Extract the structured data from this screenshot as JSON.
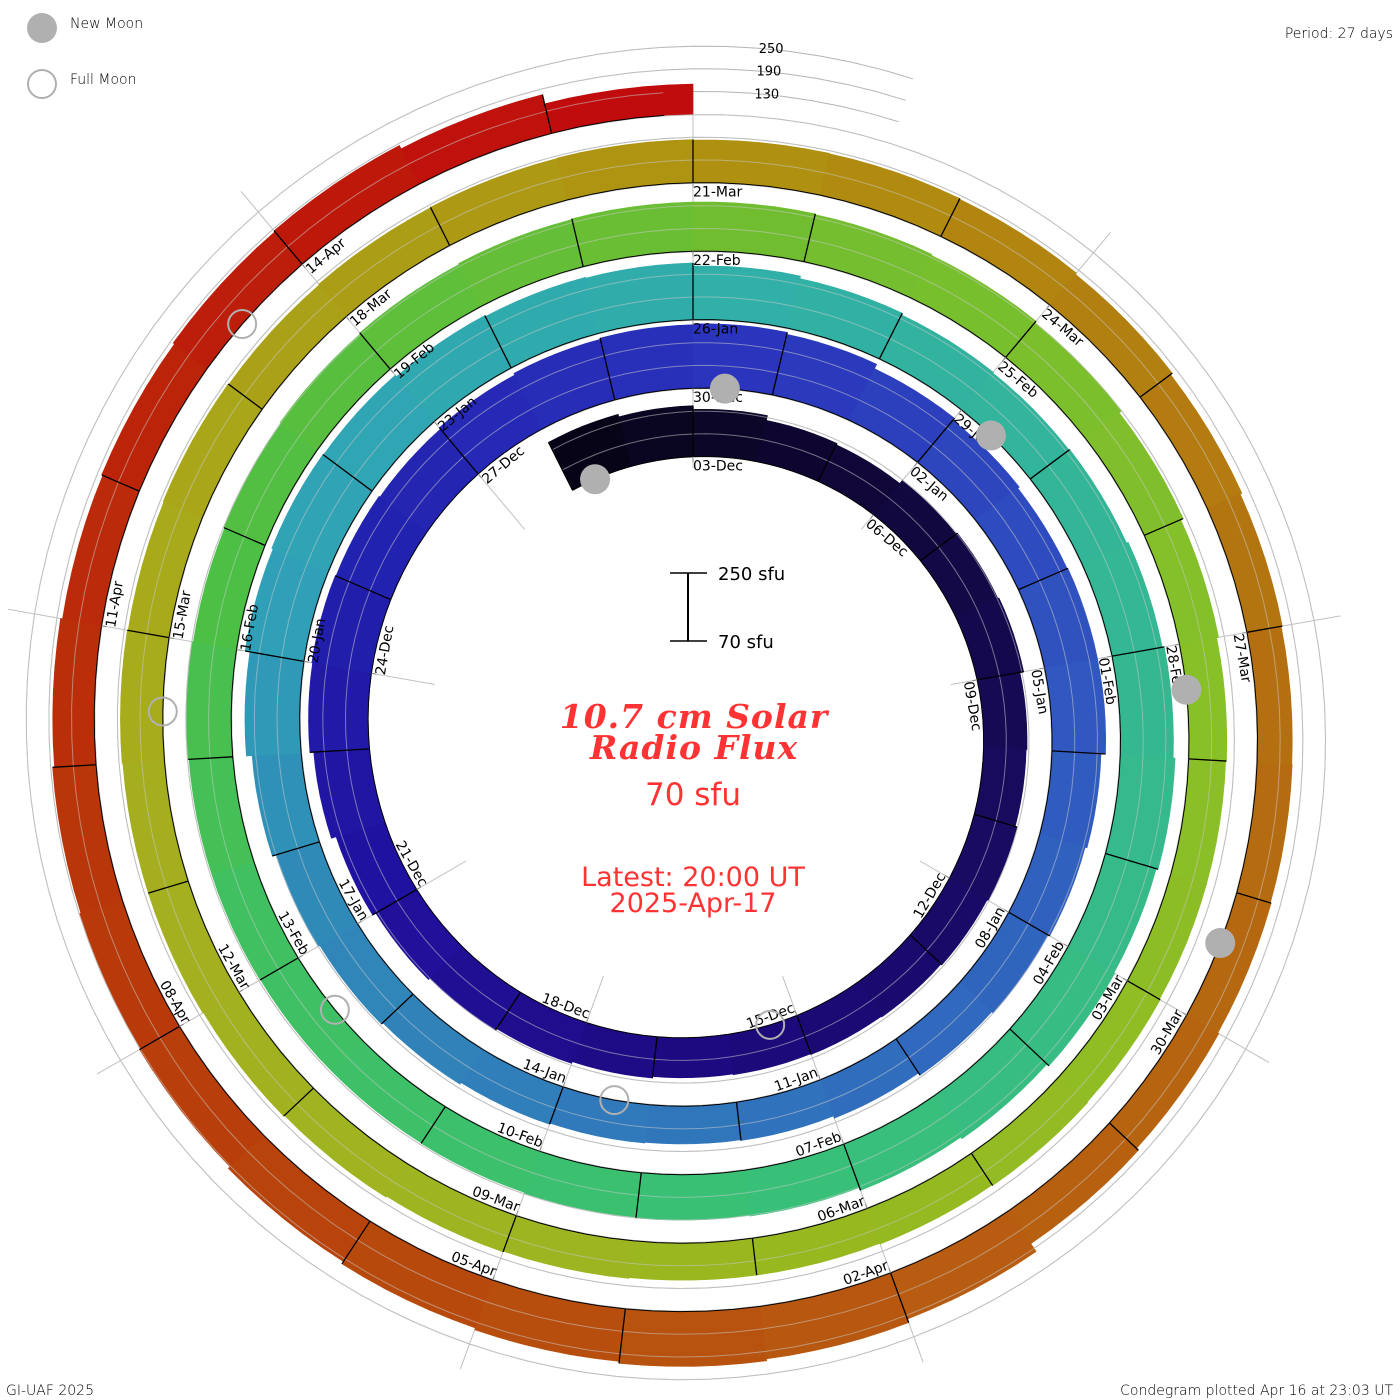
{
  "legend": {
    "new_moon": "New Moon",
    "full_moon": "Full Moon",
    "moon_color": "#b0b0b0"
  },
  "period": "Period: 27 days",
  "footer": {
    "credit": "GI-UAF 2025",
    "plotted": "Condegram plotted Apr 16 at 23:03 UT"
  },
  "center": {
    "title_line1": "10.7 cm Solar",
    "title_line2": "Radio Flux",
    "baseline_value": "70 sfu",
    "latest_line1": "Latest: 20:00 UT",
    "latest_line2": "2025-Apr-17",
    "scale_top": "250 sfu",
    "scale_bottom": "70 sfu",
    "text_color": "#ff3333"
  },
  "chart_data": {
    "type": "condegram-spiral",
    "title": "10.7 cm Solar Radio Flux",
    "units": "sfu",
    "period_days": 27,
    "baseline_sfu": 70,
    "first_day": "01-Dec",
    "grid_levels": [
      "250",
      "190",
      "130"
    ],
    "grid_level_values": [
      250,
      190,
      130
    ],
    "values": [
      212,
      205,
      195,
      182,
      178,
      188,
      192,
      195,
      185,
      183,
      188,
      185,
      182,
      180,
      178,
      176,
      180,
      185,
      190,
      195,
      205,
      218,
      228,
      230,
      228,
      225,
      230,
      235,
      238,
      240,
      235,
      222,
      215,
      210,
      212,
      212,
      200,
      195,
      190,
      185,
      178,
      172,
      170,
      172,
      175,
      180,
      185,
      190,
      200,
      215,
      228,
      232,
      230,
      225,
      222,
      220,
      212,
      205,
      200,
      198,
      200,
      205,
      210,
      215,
      210,
      212,
      205,
      200,
      192,
      190,
      188,
      186,
      185,
      185,
      186,
      186,
      188,
      186,
      188,
      192,
      195,
      198,
      200,
      200,
      198,
      195,
      190,
      182,
      175,
      170,
      168,
      168,
      170,
      172,
      170,
      168,
      168,
      170,
      172,
      175,
      178,
      180,
      180,
      182,
      180,
      182,
      180,
      182,
      183,
      184,
      183,
      182,
      180,
      176,
      170,
      165,
      162,
      163,
      165,
      168,
      175,
      200,
      210,
      215,
      210,
      205,
      198,
      192,
      188,
      185,
      180,
      175,
      178,
      182,
      185,
      175,
      150
    ],
    "tick_labels": [
      "03-Dec",
      "06-Dec",
      "09-Dec",
      "12-Dec",
      "15-Dec",
      "18-Dec",
      "21-Dec",
      "24-Dec",
      "27-Dec",
      "30-Dec",
      "02-Jan",
      "05-Jan",
      "08-Jan",
      "11-Jan",
      "14-Jan",
      "17-Jan",
      "20-Jan",
      "23-Jan",
      "26-Jan",
      "29-Jan",
      "01-Feb",
      "04-Feb",
      "07-Feb",
      "10-Feb",
      "13-Feb",
      "16-Feb",
      "19-Feb",
      "22-Feb",
      "25-Feb",
      "28-Feb",
      "03-Mar",
      "06-Mar",
      "09-Mar",
      "12-Mar",
      "15-Mar",
      "18-Mar",
      "21-Mar",
      "24-Mar",
      "27-Mar",
      "30-Mar",
      "02-Apr",
      "05-Apr",
      "08-Apr",
      "11-Apr",
      "14-Apr"
    ],
    "tick_first_day_index": 2,
    "tick_step_days": 3,
    "new_moon_day_index": [
      0,
      29,
      59,
      89,
      118
    ],
    "full_moon_day_index": [
      14,
      43,
      73,
      103,
      133
    ],
    "color_stops": [
      [
        0,
        "#080418"
      ],
      [
        5,
        "#120840"
      ],
      [
        9,
        "#180a5c"
      ],
      [
        15,
        "#1e0a80"
      ],
      [
        20,
        "#2012a0"
      ],
      [
        24,
        "#2222b0"
      ],
      [
        29,
        "#2a34bc"
      ],
      [
        35,
        "#3058c0"
      ],
      [
        41,
        "#3072bc"
      ],
      [
        47,
        "#308ab8"
      ],
      [
        50,
        "#30a0b8"
      ],
      [
        56,
        "#30b0a8"
      ],
      [
        62,
        "#35b890"
      ],
      [
        68,
        "#38c078"
      ],
      [
        74,
        "#40c060"
      ],
      [
        77,
        "#4cbf45"
      ],
      [
        83,
        "#70be30"
      ],
      [
        89,
        "#88c028"
      ],
      [
        95,
        "#98b820"
      ],
      [
        101,
        "#a4b020"
      ],
      [
        104,
        "#a8aa1c"
      ],
      [
        110,
        "#b09010"
      ],
      [
        116,
        "#b47010"
      ],
      [
        122,
        "#b85810"
      ],
      [
        128,
        "#b83a0a"
      ],
      [
        131,
        "#bb2a0a"
      ],
      [
        136,
        "#c00c0c"
      ]
    ]
  }
}
